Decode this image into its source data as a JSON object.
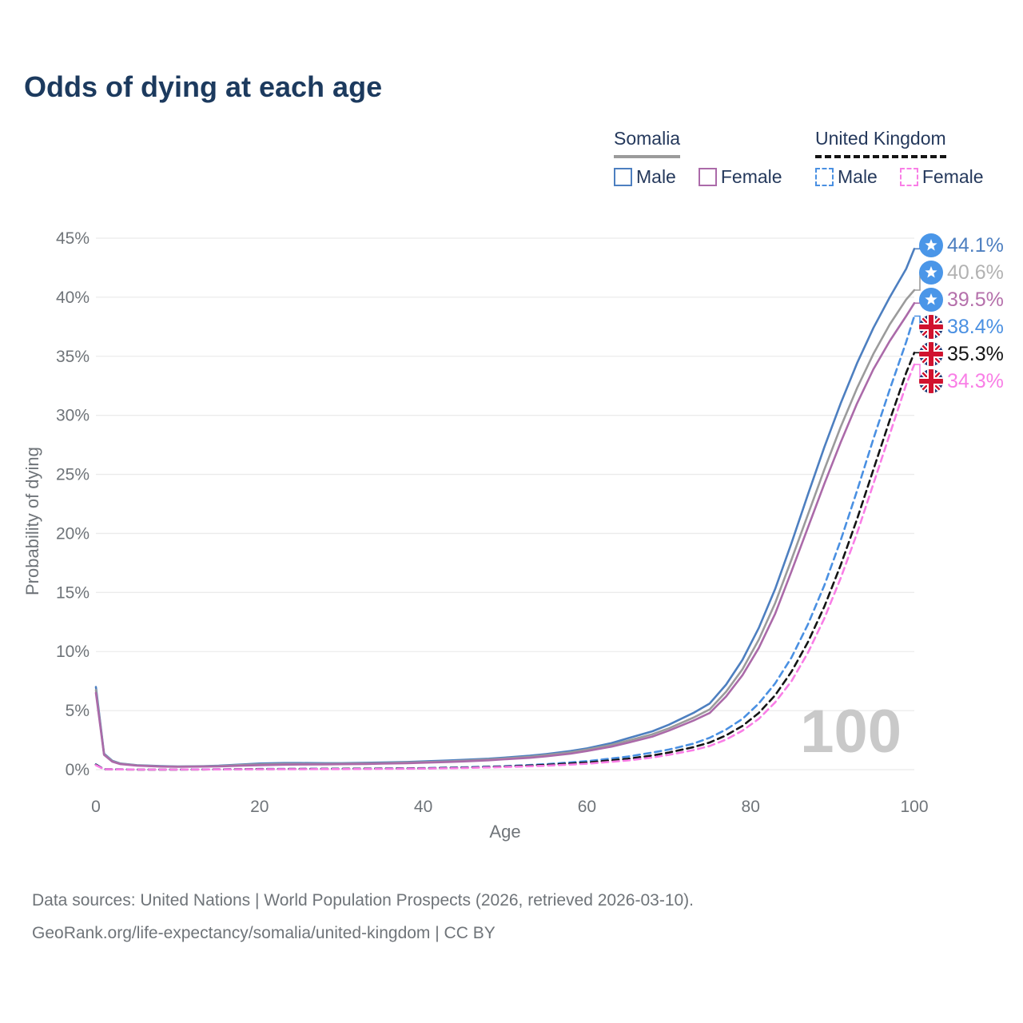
{
  "title": "Odds of dying at each age",
  "legend": {
    "groups": [
      {
        "name": "Somalia",
        "line_style": "solid",
        "sample_color": "#9b9b9b",
        "items": [
          {
            "label": "Male",
            "color": "#4d7fc0"
          },
          {
            "label": "Female",
            "color": "#ab6aa9"
          }
        ]
      },
      {
        "name": "United Kingdom",
        "line_style": "dashed",
        "sample_color": "#141414",
        "items": [
          {
            "label": "Male",
            "color": "#4a90e2"
          },
          {
            "label": "Female",
            "color": "#f97ee6"
          }
        ]
      }
    ]
  },
  "end_labels": [
    {
      "text": "44.1%",
      "color": "#4d7fc0",
      "flag": "somalia-flag"
    },
    {
      "text": "40.6%",
      "color": "#b2b2b2",
      "flag": "somalia-flag"
    },
    {
      "text": "39.5%",
      "color": "#b570ab",
      "flag": "somalia-flag"
    },
    {
      "text": "38.4%",
      "color": "#4a90e2",
      "flag": "uk-flag"
    },
    {
      "text": "35.3%",
      "color": "#141414",
      "flag": "uk-flag"
    },
    {
      "text": "34.3%",
      "color": "#f97ee6",
      "flag": "uk-flag"
    }
  ],
  "watermark": "100",
  "source": {
    "line1": "Data sources: United Nations | World Population Prospects (2026, retrieved 2026-03-10).",
    "line2": "GeoRank.org/life-expectancy/somalia/united-kingdom | CC BY"
  },
  "chart_data": {
    "type": "line",
    "title": "Odds of dying at each age",
    "xlabel": "Age",
    "ylabel": "Probability of dying",
    "xlim": [
      0,
      100
    ],
    "ylim": [
      0,
      45
    ],
    "xticks": [
      0,
      20,
      40,
      60,
      80,
      100
    ],
    "yticks": [
      0,
      5,
      10,
      15,
      20,
      25,
      30,
      35,
      40,
      45
    ],
    "ytick_suffix": "%",
    "grid": "horizontal",
    "legend_position": "top-right",
    "series": [
      {
        "name": "Somalia Male",
        "color": "#4d7fc0",
        "dash": "solid",
        "end_value_pct": 44.1,
        "points": [
          [
            0,
            7.0
          ],
          [
            1,
            1.35
          ],
          [
            2,
            0.75
          ],
          [
            3,
            0.52
          ],
          [
            5,
            0.38
          ],
          [
            8,
            0.3
          ],
          [
            10,
            0.27
          ],
          [
            13,
            0.29
          ],
          [
            15,
            0.33
          ],
          [
            18,
            0.45
          ],
          [
            20,
            0.52
          ],
          [
            23,
            0.56
          ],
          [
            25,
            0.56
          ],
          [
            28,
            0.55
          ],
          [
            30,
            0.55
          ],
          [
            33,
            0.58
          ],
          [
            35,
            0.61
          ],
          [
            38,
            0.65
          ],
          [
            40,
            0.7
          ],
          [
            43,
            0.77
          ],
          [
            45,
            0.83
          ],
          [
            48,
            0.93
          ],
          [
            50,
            1.02
          ],
          [
            53,
            1.18
          ],
          [
            55,
            1.32
          ],
          [
            58,
            1.58
          ],
          [
            60,
            1.8
          ],
          [
            63,
            2.25
          ],
          [
            65,
            2.65
          ],
          [
            68,
            3.25
          ],
          [
            70,
            3.8
          ],
          [
            73,
            4.8
          ],
          [
            75,
            5.6
          ],
          [
            77,
            7.2
          ],
          [
            79,
            9.3
          ],
          [
            81,
            12.0
          ],
          [
            83,
            15.3
          ],
          [
            85,
            19.2
          ],
          [
            87,
            23.3
          ],
          [
            89,
            27.3
          ],
          [
            91,
            31.0
          ],
          [
            93,
            34.4
          ],
          [
            95,
            37.4
          ],
          [
            97,
            40.0
          ],
          [
            99,
            42.4
          ],
          [
            100,
            44.1
          ]
        ]
      },
      {
        "name": "Somalia Both sexes",
        "color": "#9b9b9b",
        "dash": "solid",
        "end_value_pct": 40.6,
        "points": [
          [
            0,
            6.75
          ],
          [
            1,
            1.3
          ],
          [
            2,
            0.72
          ],
          [
            3,
            0.5
          ],
          [
            5,
            0.36
          ],
          [
            8,
            0.28
          ],
          [
            10,
            0.26
          ],
          [
            13,
            0.28
          ],
          [
            15,
            0.3
          ],
          [
            18,
            0.4
          ],
          [
            20,
            0.45
          ],
          [
            23,
            0.49
          ],
          [
            25,
            0.49
          ],
          [
            28,
            0.49
          ],
          [
            30,
            0.5
          ],
          [
            33,
            0.53
          ],
          [
            35,
            0.55
          ],
          [
            38,
            0.6
          ],
          [
            40,
            0.64
          ],
          [
            43,
            0.7
          ],
          [
            45,
            0.76
          ],
          [
            48,
            0.86
          ],
          [
            50,
            0.95
          ],
          [
            53,
            1.09
          ],
          [
            55,
            1.23
          ],
          [
            58,
            1.47
          ],
          [
            60,
            1.7
          ],
          [
            63,
            2.1
          ],
          [
            65,
            2.45
          ],
          [
            68,
            3.0
          ],
          [
            70,
            3.5
          ],
          [
            73,
            4.4
          ],
          [
            75,
            5.1
          ],
          [
            77,
            6.6
          ],
          [
            79,
            8.5
          ],
          [
            81,
            11.0
          ],
          [
            83,
            14.1
          ],
          [
            85,
            17.8
          ],
          [
            87,
            21.6
          ],
          [
            89,
            25.4
          ],
          [
            91,
            29.0
          ],
          [
            93,
            32.3
          ],
          [
            95,
            35.2
          ],
          [
            97,
            37.7
          ],
          [
            99,
            39.8
          ],
          [
            100,
            40.6
          ]
        ]
      },
      {
        "name": "Somalia Female",
        "color": "#ab6aa9",
        "dash": "solid",
        "end_value_pct": 39.5,
        "points": [
          [
            0,
            6.5
          ],
          [
            1,
            1.25
          ],
          [
            2,
            0.68
          ],
          [
            3,
            0.47
          ],
          [
            5,
            0.34
          ],
          [
            8,
            0.26
          ],
          [
            10,
            0.24
          ],
          [
            13,
            0.26
          ],
          [
            15,
            0.27
          ],
          [
            18,
            0.34
          ],
          [
            20,
            0.38
          ],
          [
            23,
            0.42
          ],
          [
            25,
            0.43
          ],
          [
            28,
            0.44
          ],
          [
            30,
            0.46
          ],
          [
            33,
            0.48
          ],
          [
            35,
            0.51
          ],
          [
            38,
            0.55
          ],
          [
            40,
            0.59
          ],
          [
            43,
            0.65
          ],
          [
            45,
            0.7
          ],
          [
            48,
            0.79
          ],
          [
            50,
            0.88
          ],
          [
            53,
            1.0
          ],
          [
            55,
            1.13
          ],
          [
            58,
            1.35
          ],
          [
            60,
            1.58
          ],
          [
            63,
            1.95
          ],
          [
            65,
            2.28
          ],
          [
            68,
            2.8
          ],
          [
            70,
            3.3
          ],
          [
            73,
            4.15
          ],
          [
            75,
            4.8
          ],
          [
            77,
            6.2
          ],
          [
            79,
            8.0
          ],
          [
            81,
            10.3
          ],
          [
            83,
            13.2
          ],
          [
            85,
            16.8
          ],
          [
            87,
            20.5
          ],
          [
            89,
            24.2
          ],
          [
            91,
            27.7
          ],
          [
            93,
            31.0
          ],
          [
            95,
            33.9
          ],
          [
            97,
            36.3
          ],
          [
            99,
            38.4
          ],
          [
            100,
            39.5
          ]
        ]
      },
      {
        "name": "United Kingdom Male",
        "color": "#4a90e2",
        "dash": "dashed",
        "end_value_pct": 38.4,
        "points": [
          [
            0,
            0.45
          ],
          [
            1,
            0.04
          ],
          [
            5,
            0.012
          ],
          [
            10,
            0.012
          ],
          [
            15,
            0.025
          ],
          [
            18,
            0.05
          ],
          [
            20,
            0.06
          ],
          [
            25,
            0.065
          ],
          [
            30,
            0.08
          ],
          [
            35,
            0.1
          ],
          [
            40,
            0.13
          ],
          [
            45,
            0.2
          ],
          [
            50,
            0.3
          ],
          [
            55,
            0.46
          ],
          [
            60,
            0.72
          ],
          [
            65,
            1.1
          ],
          [
            68,
            1.45
          ],
          [
            70,
            1.7
          ],
          [
            73,
            2.2
          ],
          [
            75,
            2.7
          ],
          [
            77,
            3.4
          ],
          [
            79,
            4.3
          ],
          [
            81,
            5.6
          ],
          [
            83,
            7.3
          ],
          [
            85,
            9.5
          ],
          [
            87,
            12.3
          ],
          [
            89,
            15.6
          ],
          [
            91,
            19.4
          ],
          [
            93,
            23.6
          ],
          [
            95,
            28.0
          ],
          [
            97,
            32.2
          ],
          [
            99,
            36.2
          ],
          [
            100,
            38.4
          ]
        ]
      },
      {
        "name": "United Kingdom Both sexes",
        "color": "#141414",
        "dash": "dashed",
        "end_value_pct": 35.3,
        "points": [
          [
            0,
            0.42
          ],
          [
            1,
            0.037
          ],
          [
            5,
            0.01
          ],
          [
            10,
            0.01
          ],
          [
            15,
            0.02
          ],
          [
            18,
            0.04
          ],
          [
            20,
            0.05
          ],
          [
            25,
            0.055
          ],
          [
            30,
            0.065
          ],
          [
            35,
            0.085
          ],
          [
            40,
            0.11
          ],
          [
            45,
            0.17
          ],
          [
            50,
            0.26
          ],
          [
            55,
            0.4
          ],
          [
            60,
            0.6
          ],
          [
            65,
            0.92
          ],
          [
            68,
            1.2
          ],
          [
            70,
            1.45
          ],
          [
            73,
            1.9
          ],
          [
            75,
            2.3
          ],
          [
            77,
            2.9
          ],
          [
            79,
            3.7
          ],
          [
            81,
            4.8
          ],
          [
            83,
            6.3
          ],
          [
            85,
            8.3
          ],
          [
            87,
            10.8
          ],
          [
            89,
            13.8
          ],
          [
            91,
            17.3
          ],
          [
            93,
            21.2
          ],
          [
            95,
            25.4
          ],
          [
            97,
            29.6
          ],
          [
            99,
            33.6
          ],
          [
            100,
            35.3
          ]
        ]
      },
      {
        "name": "United Kingdom Female",
        "color": "#f97ee6",
        "dash": "dashed",
        "end_value_pct": 34.3,
        "points": [
          [
            0,
            0.38
          ],
          [
            1,
            0.033
          ],
          [
            5,
            0.01
          ],
          [
            10,
            0.01
          ],
          [
            15,
            0.018
          ],
          [
            18,
            0.03
          ],
          [
            20,
            0.035
          ],
          [
            25,
            0.04
          ],
          [
            30,
            0.05
          ],
          [
            35,
            0.07
          ],
          [
            40,
            0.09
          ],
          [
            45,
            0.14
          ],
          [
            50,
            0.22
          ],
          [
            55,
            0.33
          ],
          [
            60,
            0.5
          ],
          [
            65,
            0.78
          ],
          [
            68,
            1.03
          ],
          [
            70,
            1.25
          ],
          [
            73,
            1.65
          ],
          [
            75,
            2.0
          ],
          [
            77,
            2.55
          ],
          [
            79,
            3.3
          ],
          [
            81,
            4.3
          ],
          [
            83,
            5.7
          ],
          [
            85,
            7.5
          ],
          [
            87,
            9.9
          ],
          [
            89,
            12.8
          ],
          [
            91,
            16.2
          ],
          [
            93,
            20.0
          ],
          [
            95,
            24.2
          ],
          [
            97,
            28.4
          ],
          [
            99,
            32.6
          ],
          [
            100,
            34.3
          ]
        ]
      }
    ]
  }
}
